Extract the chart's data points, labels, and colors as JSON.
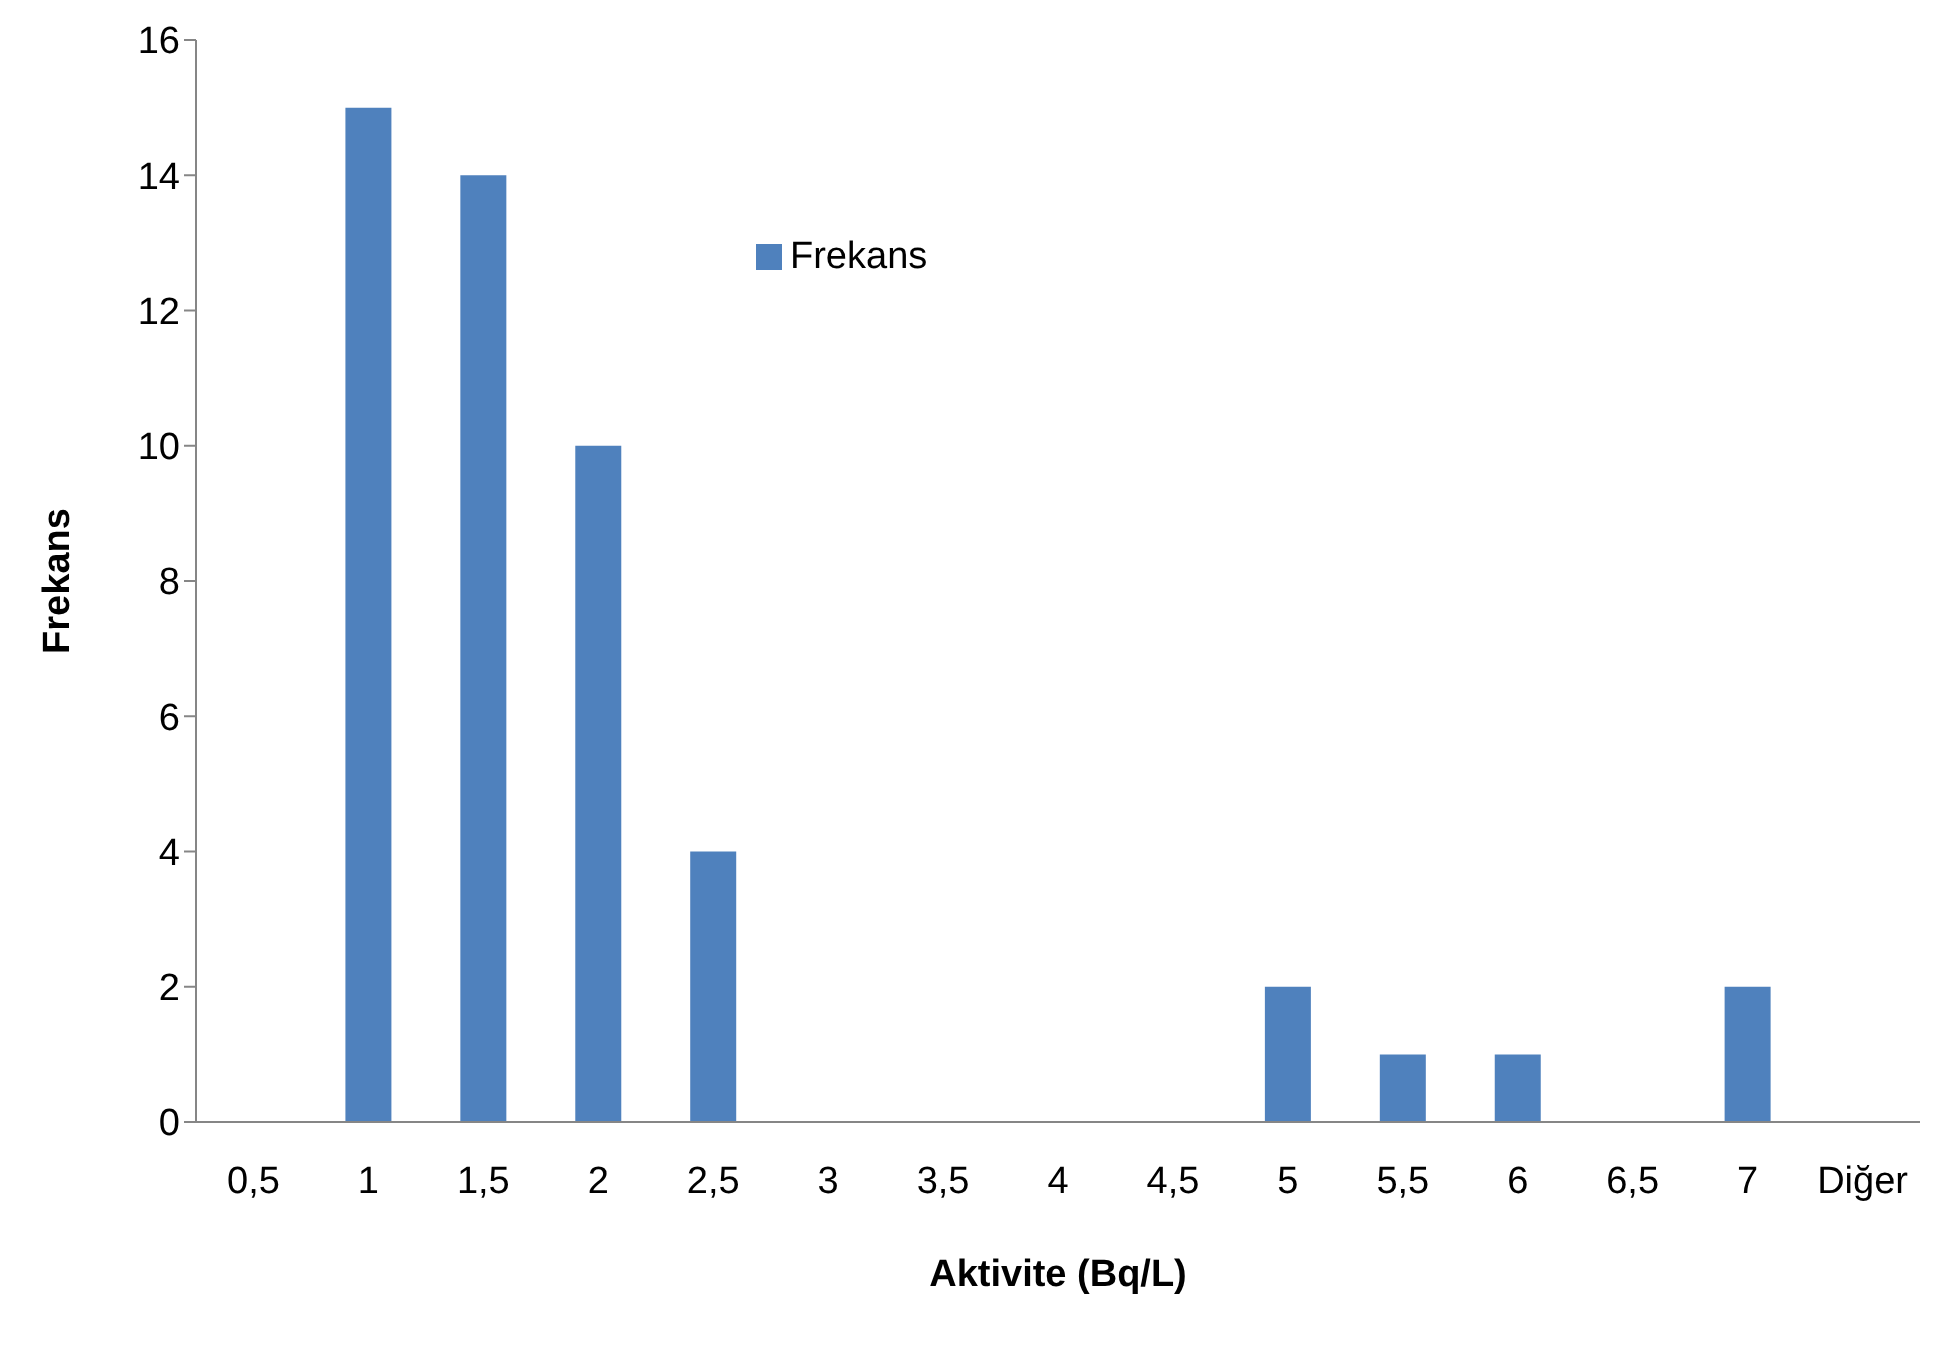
{
  "chart_data": {
    "type": "bar",
    "xlabel": "Aktivite (Bq/L)",
    "ylabel": "Frekans",
    "categories": [
      "0,5",
      "1",
      "1,5",
      "2",
      "2,5",
      "3",
      "3,5",
      "4",
      "4,5",
      "5",
      "5,5",
      "6",
      "6,5",
      "7",
      "Diğer"
    ],
    "series": [
      {
        "name": "Frekans",
        "color": "#4f81bd",
        "values": [
          0,
          15,
          14,
          10,
          4,
          0,
          0,
          0,
          0,
          2,
          1,
          1,
          0,
          2,
          0
        ]
      }
    ],
    "ylim": [
      0,
      16
    ],
    "yticks": [
      0,
      2,
      4,
      6,
      8,
      10,
      12,
      14,
      16
    ],
    "grid": false,
    "legend": "top"
  }
}
